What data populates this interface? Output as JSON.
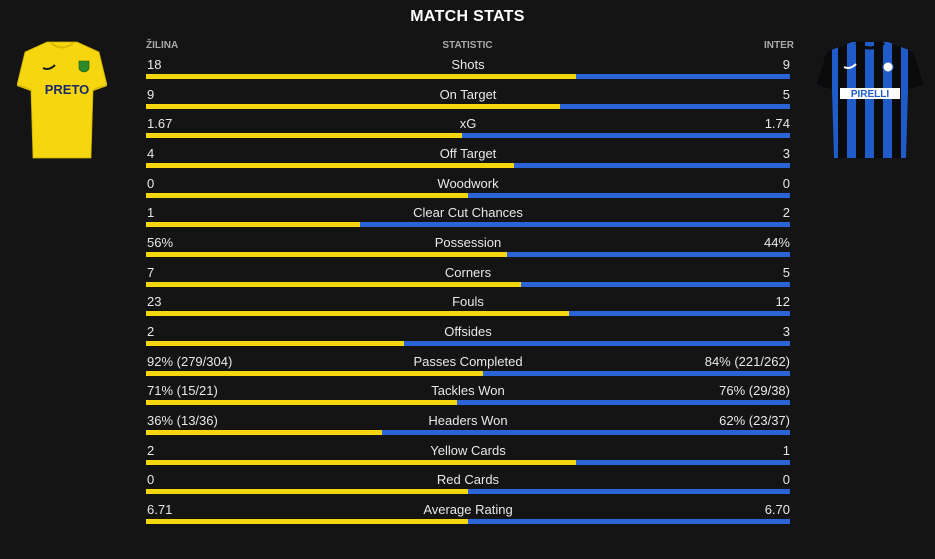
{
  "header": {
    "title": "MATCH STATS",
    "home_team": "ŽILINA",
    "statistic_label": "STATISTIC",
    "away_team": "INTER"
  },
  "kits": {
    "home": {
      "icon": "yellow-shirt-icon",
      "sponsor": "PRETO",
      "color": "#f5d60f"
    },
    "away": {
      "icon": "blue-black-striped-shirt-icon",
      "sponsor": "PIRELLI",
      "color": "#1f5cc9"
    }
  },
  "colors": {
    "home_bar": "#f5d60f",
    "away_bar": "#2a64d6"
  },
  "stats": [
    {
      "name": "Shots",
      "home": "18",
      "away": "9",
      "home_share": 0.667
    },
    {
      "name": "On Target",
      "home": "9",
      "away": "5",
      "home_share": 0.643
    },
    {
      "name": "xG",
      "home": "1.67",
      "away": "1.74",
      "home_share": 0.49
    },
    {
      "name": "Off Target",
      "home": "4",
      "away": "3",
      "home_share": 0.571
    },
    {
      "name": "Woodwork",
      "home": "0",
      "away": "0",
      "home_share": 0.5
    },
    {
      "name": "Clear Cut Chances",
      "home": "1",
      "away": "2",
      "home_share": 0.333
    },
    {
      "name": "Possession",
      "home": "56%",
      "away": "44%",
      "home_share": 0.56
    },
    {
      "name": "Corners",
      "home": "7",
      "away": "5",
      "home_share": 0.583
    },
    {
      "name": "Fouls",
      "home": "23",
      "away": "12",
      "home_share": 0.657
    },
    {
      "name": "Offsides",
      "home": "2",
      "away": "3",
      "home_share": 0.4
    },
    {
      "name": "Passes Completed",
      "home": "92% (279/304)",
      "away": "84% (221/262)",
      "home_share": 0.523
    },
    {
      "name": "Tackles Won",
      "home": "71% (15/21)",
      "away": "76% (29/38)",
      "home_share": 0.483
    },
    {
      "name": "Headers Won",
      "home": "36% (13/36)",
      "away": "62% (23/37)",
      "home_share": 0.367
    },
    {
      "name": "Yellow Cards",
      "home": "2",
      "away": "1",
      "home_share": 0.667
    },
    {
      "name": "Red Cards",
      "home": "0",
      "away": "0",
      "home_share": 0.5
    },
    {
      "name": "Average Rating",
      "home": "6.71",
      "away": "6.70",
      "home_share": 0.5
    }
  ]
}
